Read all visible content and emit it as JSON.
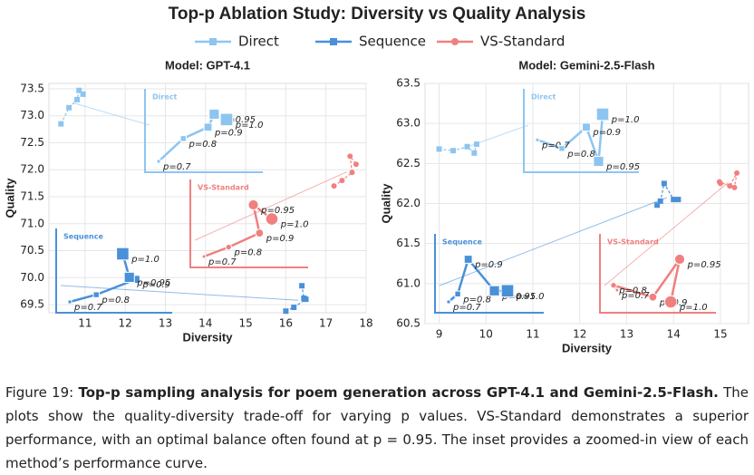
{
  "title": "Top-p Ablation Study: Diversity vs Quality Analysis",
  "chart_data": [
    {
      "type": "scatter",
      "title": "Model: GPT-4.1",
      "x_label": "Diversity",
      "y_label": "Quality",
      "xlim": [
        10.1,
        18
      ],
      "ylim": [
        69.35,
        73.6
      ],
      "grid": true,
      "xticks": [
        11,
        12,
        13,
        14,
        15,
        16,
        17,
        18
      ],
      "yticks": [
        69.5,
        {
          "value": 70,
          "label": "70.0"
        },
        70.5,
        {
          "value": 71,
          "label": "71.0"
        },
        71.5,
        {
          "value": 72,
          "label": "72.0"
        },
        72.5,
        {
          "value": 73,
          "label": "73.0"
        },
        73.5
      ],
      "series": [
        {
          "name": "Direct",
          "color": "#8ec5f0",
          "x": [
            10.4,
            10.6,
            10.8,
            10.85,
            10.95
          ],
          "y": [
            72.85,
            73.15,
            73.3,
            73.47,
            73.4
          ],
          "labels": [
            "p=0.7",
            "p=0.8",
            "p=0.9",
            "p=0.95",
            "p=1.0"
          ]
        },
        {
          "name": "Sequence",
          "color": "#4a90d9",
          "x": [
            16.0,
            16.2,
            16.5,
            16.45,
            16.4
          ],
          "y": [
            69.38,
            69.45,
            69.6,
            69.62,
            69.85
          ],
          "labels": [
            "p=0.7",
            "p=0.8",
            "p=0.9",
            "p=0.95",
            "p=1.0"
          ]
        },
        {
          "name": "VS-Standard",
          "color": "#f08080",
          "x": [
            17.2,
            17.4,
            17.65,
            17.6,
            17.75
          ],
          "y": [
            71.7,
            71.8,
            71.95,
            72.25,
            72.1
          ],
          "labels": [
            "p=0.7",
            "p=0.8",
            "p=0.9",
            "p=0.95",
            "p=1.0"
          ]
        }
      ]
    },
    {
      "type": "scatter",
      "title": "Model: Gemini-2.5-Flash",
      "x_label": "Diversity",
      "y_label": "Quality",
      "xlim": [
        8.7,
        15.6
      ],
      "ylim": [
        60.5,
        63.5
      ],
      "grid": true,
      "xticks": [
        9,
        10,
        11,
        12,
        13,
        14,
        15
      ],
      "yticks": [
        60.5,
        {
          "value": 61,
          "label": "61.0"
        },
        61.5,
        {
          "value": 62,
          "label": "62.0"
        },
        62.5,
        {
          "value": 63,
          "label": "63.0"
        },
        63.5
      ],
      "series": [
        {
          "name": "Direct",
          "color": "#8ec5f0",
          "x": [
            9.0,
            9.3,
            9.6,
            9.75,
            9.8
          ],
          "y": [
            62.68,
            62.66,
            62.71,
            62.63,
            62.74
          ],
          "labels": [
            "p=0.7",
            "p=0.8",
            "p=0.9",
            "p=0.95",
            "p=1.0"
          ]
        },
        {
          "name": "Sequence",
          "color": "#4a90d9",
          "x": [
            13.65,
            13.72,
            13.8,
            14.0,
            14.1
          ],
          "y": [
            61.98,
            62.03,
            62.25,
            62.05,
            62.05
          ],
          "labels": [
            "p=0.7",
            "p=0.8",
            "p=0.9",
            "p=0.95",
            "p=1.0"
          ]
        },
        {
          "name": "VS-Standard",
          "color": "#f08080",
          "x": [
            15.0,
            14.98,
            15.2,
            15.35,
            15.3
          ],
          "y": [
            62.25,
            62.27,
            62.22,
            62.38,
            62.2
          ],
          "labels": [
            "p=0.7",
            "p=0.8",
            "p=0.9",
            "p=0.95",
            "p=1.0"
          ]
        }
      ]
    }
  ],
  "caption": {
    "label": "Figure 19:",
    "title": "Top-p sampling analysis for poem generation across GPT-4.1 and Gemini-2.5-Flash.",
    "text": "The plots show the quality-diversity trade-off for varying p values. VS-Standard demonstrates a superior performance, with an optimal balance often found at p = 0.95. The inset provides a zoomed-in view of each method’s performance curve."
  }
}
